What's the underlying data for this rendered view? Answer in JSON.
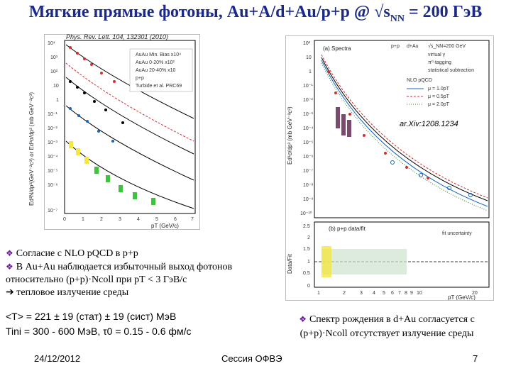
{
  "slide": {
    "title_main": "Мягкие прямые фотоны, Au+A/d+Au/p+p @ √s",
    "title_sub": "NN",
    "title_tail": " = 200 ГэВ",
    "left_figure": {
      "reference": "Phys. Rev. Lett. 104, 132301 (2010)",
      "y_label": "Ed³N/dp³(GeV⁻²c³) or Ed³σ/dp³ (mb GeV⁻²c³)",
      "x_label": "pT (GeV/c)",
      "y_ticks": [
        "10⁴",
        "10³",
        "10²",
        "10",
        "1",
        "10⁻¹",
        "10⁻²",
        "10⁻³",
        "10⁻⁴",
        "10⁻⁵",
        "10⁻⁶",
        "10⁻⁷"
      ],
      "x_ticks": [
        "0",
        "1",
        "2",
        "3",
        "4",
        "5",
        "6",
        "7"
      ],
      "legend": [
        "AuAu Min. Bias x10⁴",
        "AuAu 0-20% x10²",
        "AuAu 20-40% x10",
        "p+p",
        "Turbide et al. PRC69"
      ]
    },
    "right_figure": {
      "top_panel_label": "(a) Spectra",
      "top_legend_header": "p+p",
      "top_legend_header2": "d+Au",
      "energy": "√s_NN=200 GeV",
      "legend": [
        "virtual γ",
        "π⁰-tagging",
        "statistical subtraction"
      ],
      "nlo_title": "NLO pQCD",
      "nlo_lines": [
        "μ = 1.0pT",
        "μ = 0.5pT",
        "μ = 2.0pT"
      ],
      "arxiv": "ar.Xiv:1208.1234",
      "y_label_top": "Ed³σ/dp³ (mb GeV⁻²c³)",
      "y_ticks_top": [
        "10²",
        "10",
        "1",
        "10⁻¹",
        "10⁻²",
        "10⁻³",
        "10⁻⁴",
        "10⁻⁵",
        "10⁻⁶",
        "10⁻⁷",
        "10⁻⁸",
        "10⁻⁹",
        "10⁻¹⁰"
      ],
      "bottom_panel_label": "(b) p+p data/fit",
      "fit_legend": "fit uncertainty",
      "y_label_bottom": "Data/Fit",
      "y_ticks_bottom": [
        "2.5",
        "2",
        "1.5",
        "1",
        "0.5",
        "0"
      ],
      "x_ticks": [
        "1",
        "2",
        "3",
        "4",
        "5",
        "6",
        "7",
        "8",
        "9",
        "10",
        "20"
      ],
      "x_label": "pT (GeV/c)"
    },
    "bullets": [
      "Согласие с NLO pQCD в p+p",
      "В Au+Au наблюдается избыточный выход фотонов относительно (p+p)·Ncoll при pT < 3 ГэВ/c"
    ],
    "bullet_arrow_line": "тепловое излучение среды",
    "results": {
      "line1": "<T> = 221 ± 19 (стат) ± 19 (сист) МэВ",
      "line2": "Tini = 300 - 600 МэВ, τ0 = 0.15 - 0.6 фм/с"
    },
    "right_note": {
      "line1": "Спектр рождения в d+Au согласуется с",
      "line2": "(p+p)·Ncoll  отсутствует излучение среды"
    },
    "footer": {
      "date": "24/12/2012",
      "session": "Сессия ОФВЭ",
      "page": "7"
    },
    "colors": {
      "title": "#1a2a8a",
      "bullet_marker": "#6a1b9a",
      "series_black": "#000000",
      "series_red": "#d32f2f",
      "series_blue": "#1565c0",
      "band_yellow": "#f5e642",
      "band_green": "#3cc43c",
      "band_purple": "#7a4a6e"
    }
  }
}
